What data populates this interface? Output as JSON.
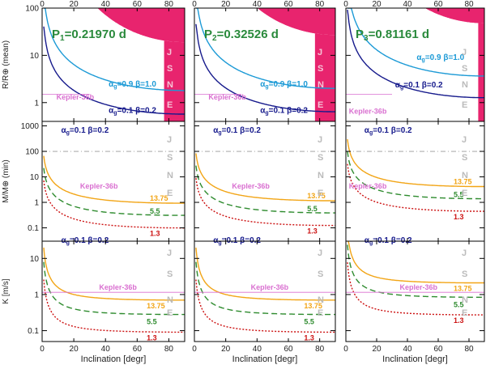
{
  "chart_data": {
    "type": "line",
    "description_free": true,
    "columns": [
      {
        "title_label": "P",
        "title_sub": "1",
        "title_value": "=0.21970 d",
        "show_letters_top": true
      },
      {
        "title_label": "P",
        "title_sub": "2",
        "title_value": "=0.32526 d",
        "show_letters_top": true
      },
      {
        "title_label": "P",
        "title_sub": "3",
        "title_value": "=0.81161 d",
        "show_letters_top": true
      }
    ],
    "x_axis": {
      "label": "Inclination [degr]",
      "range": [
        0,
        90
      ],
      "ticks": [
        0,
        20,
        40,
        60,
        80
      ],
      "top_tick_labels": [
        "0",
        "20",
        "40",
        "60",
        "80"
      ]
    },
    "rows": [
      {
        "ylabel": "R/R⊕ (mean)",
        "scale": "log",
        "ylim": [
          0.4,
          100
        ],
        "ticks": [
          1,
          10,
          100
        ],
        "tick_labels": [
          "1",
          "10",
          "100"
        ],
        "forbidden_color": "#e8246e"
      },
      {
        "ylabel": "M/M⊕ (min)",
        "scale": "log",
        "ylim": [
          0.03,
          1500
        ],
        "ticks": [
          0.1,
          1,
          10,
          100,
          1000
        ],
        "tick_labels": [
          "0.1",
          "1",
          "10",
          "100",
          "1000"
        ],
        "reference_line": 100
      },
      {
        "ylabel": "K [m/s]",
        "scale": "log",
        "ylim": [
          0.05,
          30
        ],
        "ticks": [
          0.1,
          1,
          10
        ],
        "tick_labels": [
          "0.1",
          "1",
          "10"
        ]
      }
    ],
    "colors": {
      "alpha09": "#1c9ad6",
      "alpha01": "#161a8c",
      "kepler": "#d96fd0",
      "orange": "#f2a516",
      "green": "#2e8b2e",
      "red": "#cc1111",
      "letters": "#bbbbbb",
      "forbidden": "#e8246e",
      "refline": "#999999"
    },
    "letters": [
      "J",
      "S",
      "N",
      "E"
    ],
    "radius_panel": {
      "forbidden_limits": [
        {
          "k": 19.0,
          "v": 85.0
        },
        {
          "k": 27.0,
          "v": 100.0
        },
        {
          "k": 48.0,
          "v": 100.0
        }
      ],
      "alpha09_label": "α_g=0.9  β=1.0",
      "alpha01_label": "α_g=0.1  β=0.2",
      "alpha09_curves": [
        {
          "A": 1.75,
          "c": 0.05
        },
        {
          "A": 1.95,
          "c": 0.05
        },
        {
          "A": 3.6,
          "c": 0.05
        }
      ],
      "alpha01_curves": [
        {
          "A": 0.55,
          "c": 0.02
        },
        {
          "A": 0.62,
          "c": 0.02
        },
        {
          "A": 1.25,
          "c": 0.02
        }
      ],
      "kepler_label": "Kepler-36b",
      "kepler_value": 1.5
    },
    "mass_panel": {
      "param_label": "α_g=0.1  β=0.2",
      "kepler_label": "Kepler-36b",
      "kepler_value": 4.4,
      "series": [
        {
          "name": "13.75",
          "A": 0.42,
          "c": 0.01,
          "style": "solid",
          "color": "orange"
        },
        {
          "name": "5.5",
          "A": 0.14,
          "c": 0.01,
          "style": "dashed",
          "color": "green"
        },
        {
          "name": "1.3",
          "A": 0.045,
          "c": 0.01,
          "style": "dotted",
          "color": "red"
        }
      ],
      "scale_factors": [
        1.0,
        1.25,
        4.5
      ]
    },
    "rv_panel": {
      "param_label": "α_g=0.1  β=0.2",
      "kepler_label": "Kepler-36b",
      "kepler_value": 1.15,
      "series": [
        {
          "name": "13.75",
          "A": 0.1,
          "c": 0.02,
          "style": "solid",
          "color": "orange"
        },
        {
          "name": "5.5",
          "A": 0.04,
          "c": 0.02,
          "style": "dashed",
          "color": "green"
        },
        {
          "name": "1.3",
          "A": 0.013,
          "c": 0.02,
          "style": "dotted",
          "color": "red"
        }
      ],
      "scale_factors": [
        1.0,
        1.0,
        3.0
      ]
    }
  }
}
